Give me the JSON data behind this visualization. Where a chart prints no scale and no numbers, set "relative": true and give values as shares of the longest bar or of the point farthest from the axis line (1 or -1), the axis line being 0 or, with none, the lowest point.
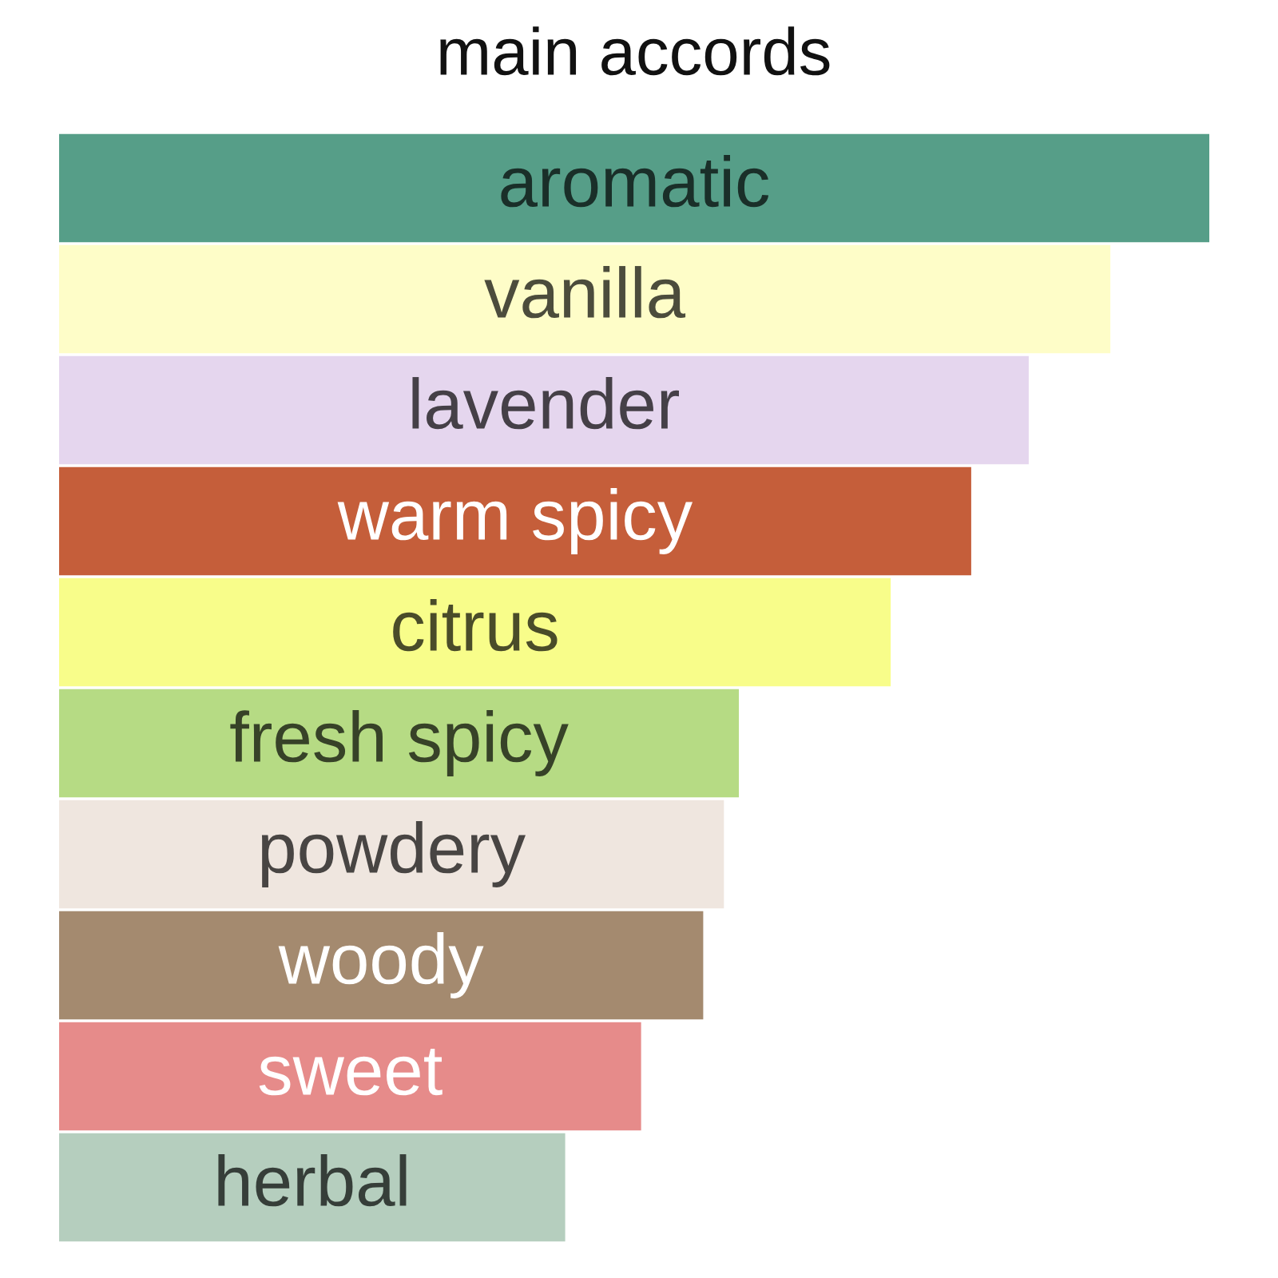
{
  "chart_data": {
    "type": "bar",
    "orientation": "horizontal",
    "relative": true,
    "title": "main accords",
    "categories": [
      "aromatic",
      "vanilla",
      "lavender",
      "warm spicy",
      "citrus",
      "fresh spicy",
      "powdery",
      "woody",
      "sweet",
      "herbal"
    ],
    "values": [
      1,
      0.914,
      0.843,
      0.793,
      0.723,
      0.591,
      0.578,
      0.56,
      0.506,
      0.44
    ],
    "colors": [
      "#569e88",
      "#fefdc8",
      "#e5d6ee",
      "#c55e3a",
      "#f8fd8a",
      "#b6db84",
      "#efe6df",
      "#a48a6f",
      "#e68b8a",
      "#b5cebe"
    ]
  }
}
